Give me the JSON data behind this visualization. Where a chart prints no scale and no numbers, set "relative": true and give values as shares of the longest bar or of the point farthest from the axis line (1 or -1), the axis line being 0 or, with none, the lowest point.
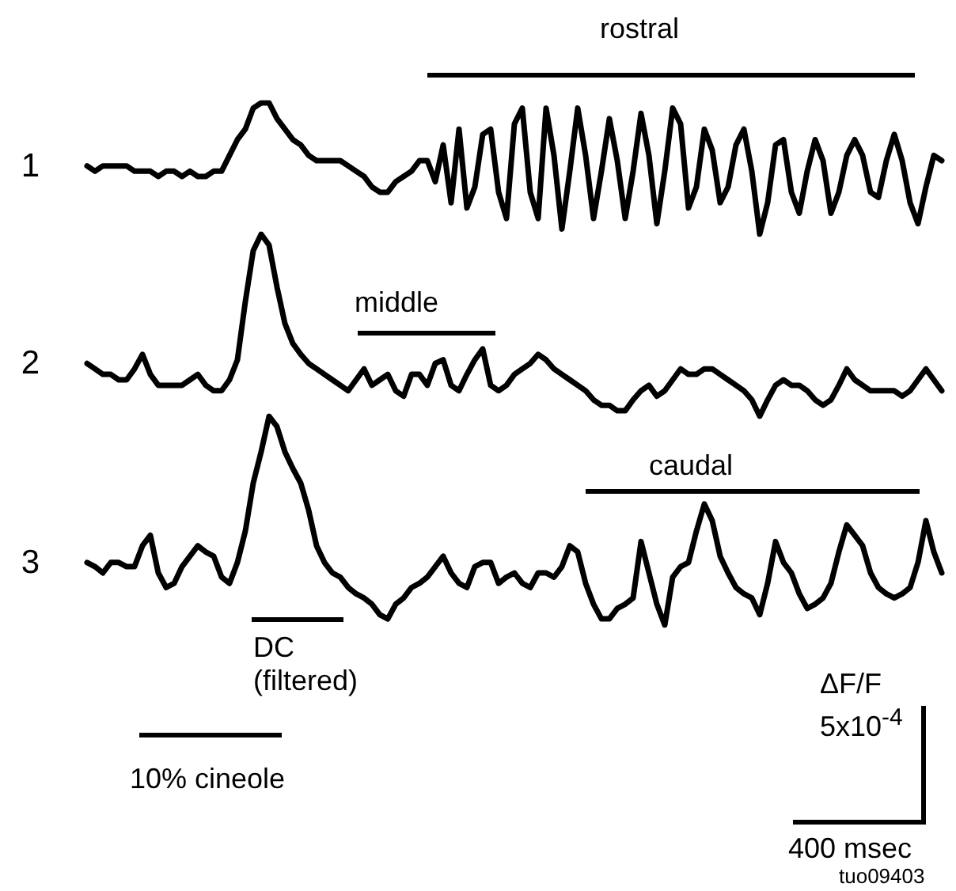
{
  "chart_data": [
    {
      "type": "line",
      "relative": true,
      "line_style": "solid",
      "marker": "none",
      "categories": [
        null,
        null,
        null,
        null,
        null,
        null,
        null,
        null,
        null,
        null,
        null,
        null,
        null,
        null,
        null,
        null,
        null,
        null,
        null,
        null,
        null,
        null,
        null,
        null,
        null,
        null,
        null,
        null,
        null,
        null,
        null,
        null,
        null,
        null,
        null,
        null,
        null,
        null,
        null,
        null,
        null,
        null,
        null,
        null,
        null,
        null,
        null,
        null,
        null,
        null,
        null,
        null,
        null,
        null,
        null,
        null,
        null,
        null,
        null,
        null,
        null,
        null,
        null,
        null,
        null,
        null,
        null,
        null,
        null,
        null,
        null,
        null,
        null,
        null,
        null,
        null,
        null,
        null,
        null,
        null,
        null,
        null,
        null,
        null,
        null,
        null,
        null,
        null,
        null,
        null,
        null,
        null,
        null,
        null,
        null,
        null,
        null,
        null,
        null,
        null,
        null,
        null,
        null,
        null,
        null,
        null,
        null,
        null,
        null
      ],
      "series": [
        {
          "name": "1",
          "color": "#000000",
          "values": [
            0.52,
            0.48,
            0.52,
            0.52,
            0.52,
            0.52,
            0.48,
            0.48,
            0.48,
            0.44,
            0.48,
            0.48,
            0.44,
            0.48,
            0.44,
            0.44,
            0.48,
            0.48,
            0.6,
            0.72,
            0.8,
            0.96,
            1,
            1,
            0.88,
            0.8,
            0.72,
            0.68,
            0.6,
            0.56,
            0.56,
            0.56,
            0.56,
            0.52,
            0.48,
            0.44,
            0.36,
            0.32,
            0.32,
            0.4,
            0.44,
            0.48,
            0.56,
            0.56,
            0.4,
            0.68,
            0.24,
            0.8,
            0.2,
            0.36,
            0.76,
            0.8,
            0.32,
            0.12,
            0.84,
            0.96,
            0.32,
            0.12,
            0.96,
            0.6,
            0.04,
            0.48,
            0.96,
            0.6,
            0.12,
            0.48,
            0.88,
            0.56,
            0.12,
            0.48,
            0.92,
            0.6,
            0.08,
            0.48,
            0.96,
            0.84,
            0.2,
            0.36,
            0.8,
            0.64,
            0.24,
            0.36,
            0.68,
            0.8,
            0.48,
            0,
            0.24,
            0.68,
            0.72,
            0.32,
            0.16,
            0.48,
            0.72,
            0.56,
            0.16,
            0.32,
            0.6,
            0.72,
            0.6,
            0.32,
            0.28,
            0.56,
            0.76,
            0.56,
            0.24,
            0.08,
            0.36,
            0.6,
            0.56
          ]
        }
      ],
      "annotations": [
        "rostral"
      ]
    },
    {
      "type": "line",
      "relative": true,
      "line_style": "solid",
      "marker": "none",
      "categories": [
        null,
        null,
        null,
        null,
        null,
        null,
        null,
        null,
        null,
        null,
        null,
        null,
        null,
        null,
        null,
        null,
        null,
        null,
        null,
        null,
        null,
        null,
        null,
        null,
        null,
        null,
        null,
        null,
        null,
        null,
        null,
        null,
        null,
        null,
        null,
        null,
        null,
        null,
        null,
        null,
        null,
        null,
        null,
        null,
        null,
        null,
        null,
        null,
        null,
        null,
        null,
        null,
        null,
        null,
        null,
        null,
        null,
        null,
        null,
        null,
        null,
        null,
        null,
        null,
        null,
        null,
        null,
        null,
        null,
        null,
        null,
        null,
        null,
        null,
        null,
        null,
        null,
        null,
        null,
        null,
        null,
        null,
        null,
        null,
        null,
        null,
        null,
        null,
        null,
        null,
        null,
        null,
        null,
        null,
        null,
        null,
        null,
        null,
        null,
        null,
        null,
        null,
        null,
        null,
        null,
        null,
        null,
        null,
        null
      ],
      "series": [
        {
          "name": "2",
          "color": "#000000",
          "values": [
            0.29,
            0.26,
            0.23,
            0.23,
            0.2,
            0.2,
            0.26,
            0.34,
            0.23,
            0.17,
            0.17,
            0.17,
            0.17,
            0.2,
            0.23,
            0.17,
            0.14,
            0.14,
            0.2,
            0.31,
            0.63,
            0.91,
            1,
            0.94,
            0.71,
            0.51,
            0.4,
            0.34,
            0.29,
            0.26,
            0.23,
            0.2,
            0.17,
            0.14,
            0.2,
            0.26,
            0.17,
            0.2,
            0.23,
            0.14,
            0.11,
            0.23,
            0.23,
            0.17,
            0.29,
            0.31,
            0.17,
            0.14,
            0.23,
            0.31,
            0.37,
            0.17,
            0.14,
            0.17,
            0.23,
            0.26,
            0.29,
            0.34,
            0.31,
            0.26,
            0.23,
            0.2,
            0.17,
            0.14,
            0.09,
            0.06,
            0.06,
            0.03,
            0.03,
            0.09,
            0.14,
            0.17,
            0.11,
            0.14,
            0.2,
            0.26,
            0.23,
            0.23,
            0.26,
            0.26,
            0.23,
            0.2,
            0.17,
            0.14,
            0.09,
            0,
            0.09,
            0.17,
            0.2,
            0.17,
            0.17,
            0.14,
            0.09,
            0.06,
            0.09,
            0.17,
            0.26,
            0.2,
            0.17,
            0.14,
            0.14,
            0.14,
            0.14,
            0.11,
            0.14,
            0.2,
            0.26,
            0.2,
            0.14
          ]
        }
      ],
      "annotations": [
        "middle"
      ]
    },
    {
      "type": "line",
      "relative": true,
      "line_style": "solid",
      "marker": "none",
      "categories": [
        null,
        null,
        null,
        null,
        null,
        null,
        null,
        null,
        null,
        null,
        null,
        null,
        null,
        null,
        null,
        null,
        null,
        null,
        null,
        null,
        null,
        null,
        null,
        null,
        null,
        null,
        null,
        null,
        null,
        null,
        null,
        null,
        null,
        null,
        null,
        null,
        null,
        null,
        null,
        null,
        null,
        null,
        null,
        null,
        null,
        null,
        null,
        null,
        null,
        null,
        null,
        null,
        null,
        null,
        null,
        null,
        null,
        null,
        null,
        null,
        null,
        null,
        null,
        null,
        null,
        null,
        null,
        null,
        null,
        null,
        null,
        null,
        null,
        null,
        null,
        null,
        null,
        null,
        null,
        null,
        null,
        null,
        null,
        null,
        null,
        null,
        null,
        null,
        null,
        null,
        null,
        null,
        null,
        null,
        null,
        null,
        null,
        null,
        null,
        null,
        null,
        null,
        null,
        null,
        null,
        null,
        null,
        null,
        null
      ],
      "series": [
        {
          "name": "3",
          "color": "#000000",
          "values": [
            0.3,
            0.28,
            0.25,
            0.3,
            0.3,
            0.28,
            0.28,
            0.38,
            0.43,
            0.25,
            0.18,
            0.2,
            0.28,
            0.33,
            0.38,
            0.35,
            0.33,
            0.23,
            0.2,
            0.3,
            0.45,
            0.68,
            0.83,
            1,
            0.95,
            0.83,
            0.75,
            0.68,
            0.55,
            0.38,
            0.3,
            0.25,
            0.23,
            0.18,
            0.15,
            0.13,
            0.1,
            0.05,
            0.03,
            0.1,
            0.13,
            0.18,
            0.2,
            0.23,
            0.28,
            0.33,
            0.25,
            0.2,
            0.18,
            0.28,
            0.3,
            0.3,
            0.2,
            0.23,
            0.25,
            0.2,
            0.18,
            0.25,
            0.25,
            0.23,
            0.28,
            0.38,
            0.35,
            0.2,
            0.1,
            0.03,
            0.03,
            0.08,
            0.1,
            0.13,
            0.4,
            0.25,
            0.1,
            0,
            0.23,
            0.28,
            0.3,
            0.45,
            0.58,
            0.5,
            0.33,
            0.25,
            0.18,
            0.15,
            0.13,
            0.05,
            0.2,
            0.4,
            0.3,
            0.25,
            0.15,
            0.08,
            0.1,
            0.13,
            0.2,
            0.35,
            0.48,
            0.43,
            0.38,
            0.25,
            0.18,
            0.15,
            0.13,
            0.15,
            0.18,
            0.3,
            0.5,
            0.35,
            0.25
          ]
        }
      ],
      "annotations": [
        "caudal",
        "DC (filtered)",
        "10% cineole",
        "ΔF/F 5x10$^{-4}$",
        "400 msec",
        "tuo09403"
      ]
    }
  ]
}
